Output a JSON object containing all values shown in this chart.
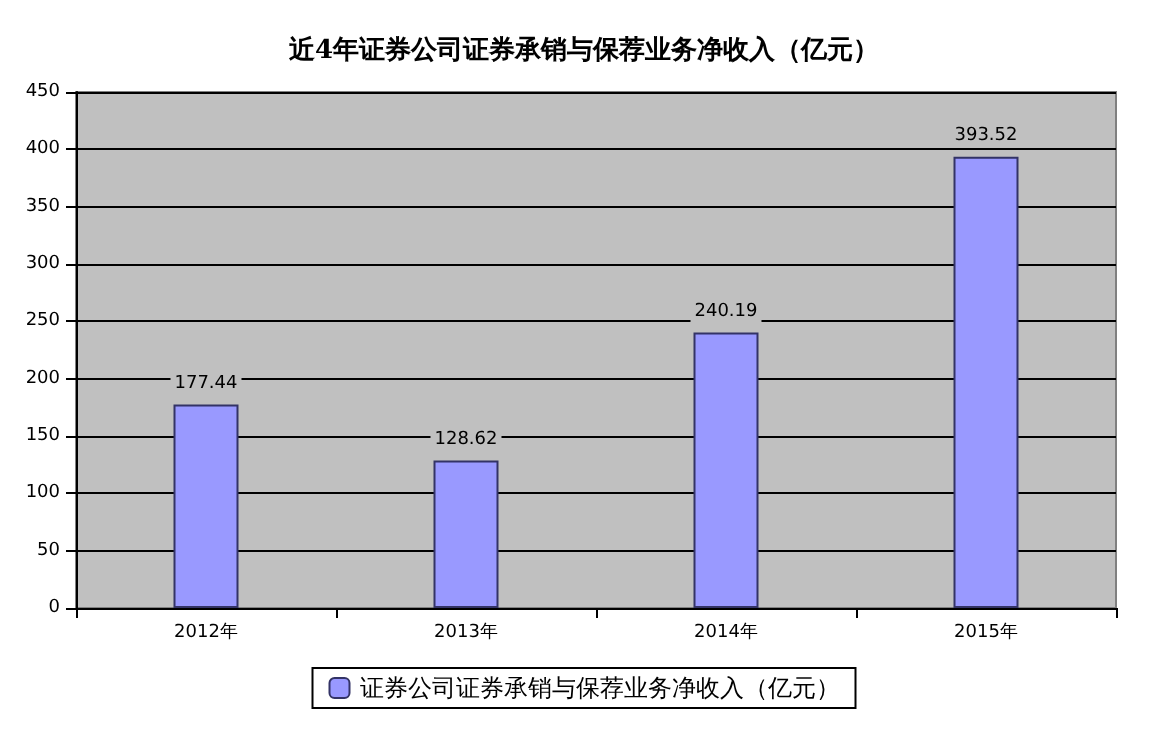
{
  "chart_data": {
    "type": "bar",
    "title": "近4年证券公司证券承销与保荐业务净收入（亿元）",
    "categories": [
      "2012年",
      "2013年",
      "2014年",
      "2015年"
    ],
    "series": [
      {
        "name": "证券公司证券承销与保荐业务净收入（亿元）",
        "color": "#9999ff",
        "values": [
          177.44,
          128.62,
          240.19,
          393.52
        ]
      }
    ],
    "ylim": [
      0,
      450
    ],
    "yticks": [
      0,
      50,
      100,
      150,
      200,
      250,
      300,
      350,
      400,
      450
    ],
    "grid": "y",
    "legend": "bottom",
    "data_labels": true
  }
}
